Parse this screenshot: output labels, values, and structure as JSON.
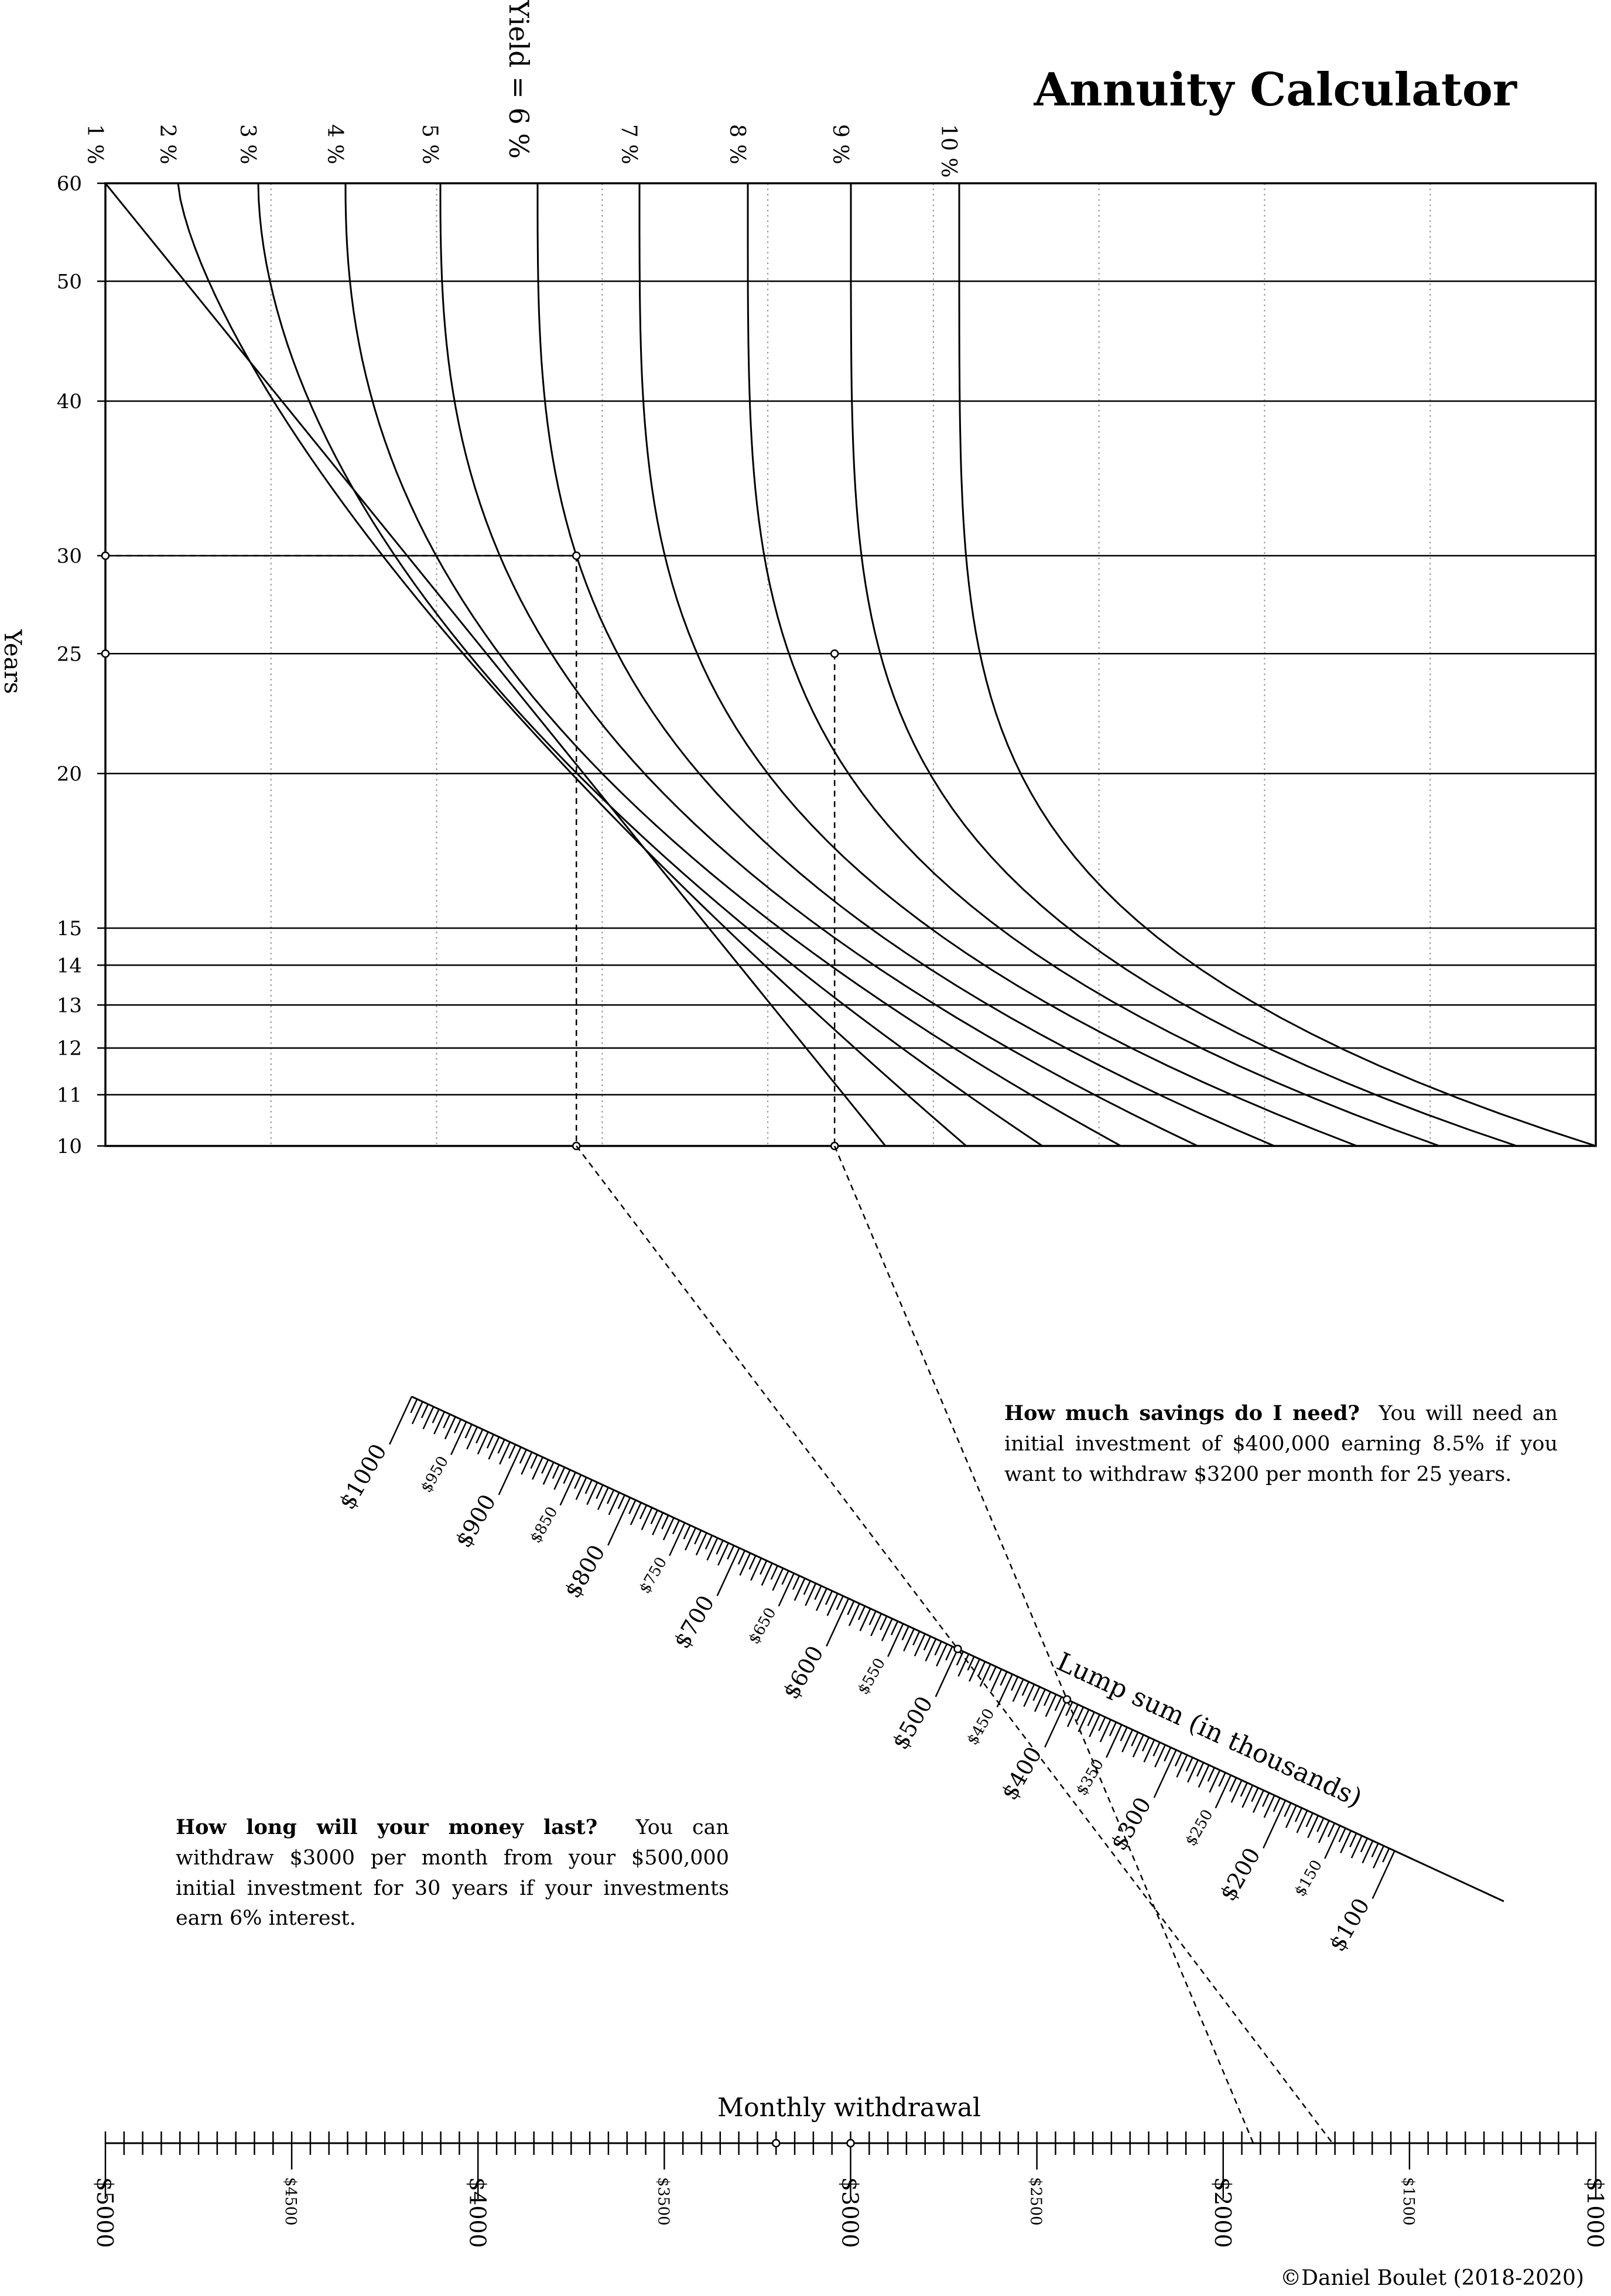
{
  "title": "Annuity Calculator",
  "yield_axis_label": "Yield = 6 %",
  "years_axis_label": "Years",
  "rate_labels": [
    "1 %",
    "2 %",
    "3 %",
    "4 %",
    "5 %",
    "",
    "7 %",
    "8 %",
    "9 %",
    "10 %"
  ],
  "year_ticks": [
    "10",
    "11",
    "12",
    "13",
    "14",
    "15",
    "20",
    "25",
    "30",
    "40",
    "50",
    "60"
  ],
  "lump_sum": {
    "label": "Lump sum (in thousands)",
    "major_labels": [
      "$1000",
      "$900",
      "$800",
      "$700",
      "$600",
      "$500",
      "$400",
      "$300",
      "$200",
      "$100"
    ],
    "minor_labels": [
      "$950",
      "$850",
      "$750",
      "$650",
      "$550",
      "$450",
      "$350",
      "$250",
      "$150"
    ]
  },
  "monthly": {
    "label": "Monthly withdrawal",
    "major_labels": [
      "$5000",
      "$4000",
      "$3000",
      "$2000",
      "$1000"
    ],
    "minor_labels": [
      "$4500",
      "$3500",
      "$2500",
      "$1500"
    ]
  },
  "examples": {
    "savings_title": "How much savings do I need?",
    "savings_body": "You will need an initial investment of $400,000 earning 8.5%  if you want to withdraw $3200 per month for 25 years.",
    "duration_title": "How long will your money last?",
    "duration_body": "You can withdraw $3000 per month from your $500,000  initial investment for 30 years if your investments earn 6% interest."
  },
  "copyright": "©Daniel Boulet (2018-2020)",
  "chart_data": {
    "type": "nomogram",
    "rates_percent": [
      1,
      2,
      3,
      4,
      5,
      6,
      7,
      8,
      9,
      10
    ],
    "years_range": [
      10,
      60
    ],
    "years_scale": "log",
    "lump_sum_range_thousands": [
      100,
      1000
    ],
    "monthly_withdrawal_range": [
      1000,
      5000
    ],
    "example_savings": {
      "rate_percent": 8.5,
      "years": 25,
      "monthly_withdrawal": 3200,
      "lump_sum_thousands": 400
    },
    "example_duration": {
      "rate_percent": 6,
      "years": 30,
      "monthly_withdrawal": 3000,
      "lump_sum_thousands": 500
    }
  }
}
